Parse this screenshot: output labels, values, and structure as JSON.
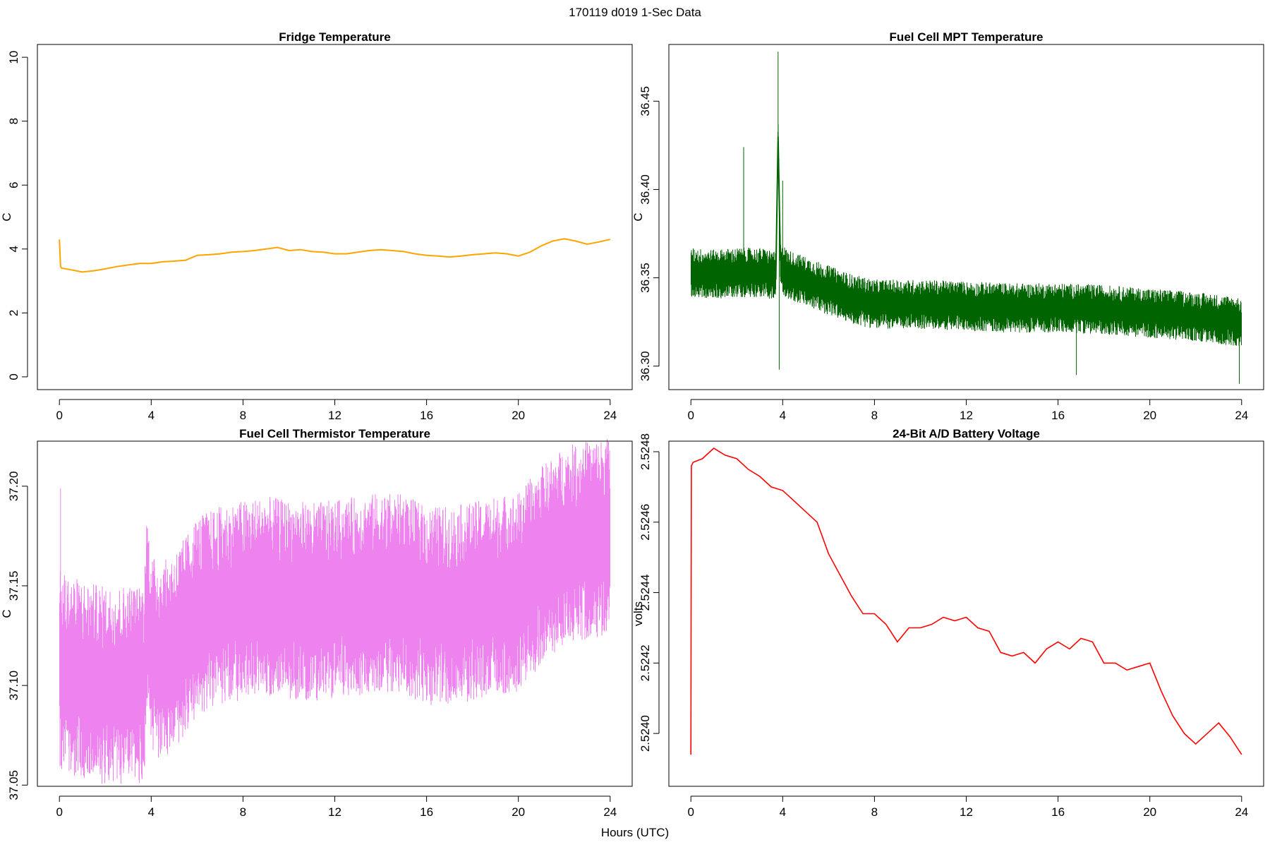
{
  "figure": {
    "suptitle": "170119   d019   1-Sec Data",
    "xlabel": "Hours (UTC)"
  },
  "chart_data": [
    {
      "type": "line",
      "title": "Fridge Temperature",
      "ylabel": "C",
      "xlabel": "",
      "color": "#FFA500",
      "xlim": [
        -0.96,
        24.96
      ],
      "ylim": [
        -0.4,
        10.4
      ],
      "xticks": [
        "0",
        "4",
        "8",
        "12",
        "16",
        "20",
        "24"
      ],
      "yticks": [
        "0",
        "2",
        "4",
        "6",
        "8",
        "10"
      ],
      "noise": 0.02,
      "x": [
        0,
        0.05,
        0.1,
        0.5,
        1,
        1.5,
        2,
        2.5,
        3,
        3.5,
        4,
        4.5,
        5,
        5.5,
        6,
        6.5,
        7,
        7.5,
        8,
        8.5,
        9,
        9.5,
        10,
        10.5,
        11,
        11.5,
        12,
        12.5,
        13,
        13.5,
        14,
        14.5,
        15,
        15.5,
        16,
        16.5,
        17,
        17.5,
        18,
        18.5,
        19,
        19.5,
        20,
        20.5,
        21,
        21.5,
        22,
        22.5,
        23,
        23.5,
        24
      ],
      "values": [
        4.3,
        3.45,
        3.4,
        3.35,
        3.28,
        3.32,
        3.38,
        3.45,
        3.5,
        3.55,
        3.55,
        3.6,
        3.62,
        3.65,
        3.8,
        3.82,
        3.85,
        3.9,
        3.92,
        3.95,
        4.0,
        4.05,
        3.95,
        3.98,
        3.92,
        3.9,
        3.85,
        3.85,
        3.9,
        3.95,
        3.98,
        3.95,
        3.92,
        3.85,
        3.8,
        3.78,
        3.75,
        3.78,
        3.82,
        3.85,
        3.88,
        3.85,
        3.78,
        3.9,
        4.1,
        4.25,
        4.32,
        4.25,
        4.15,
        4.22,
        4.3
      ]
    },
    {
      "type": "line",
      "title": "Fuel Cell MPT Temperature",
      "ylabel": "C",
      "xlabel": "",
      "color": "#006400",
      "xlim": [
        -0.96,
        24.96
      ],
      "ylim": [
        36.2867,
        36.4821
      ],
      "xticks": [
        "0",
        "4",
        "8",
        "12",
        "16",
        "20",
        "24"
      ],
      "yticks": [
        "36.30",
        "36.35",
        "36.40",
        "36.45"
      ],
      "noise": 0.014,
      "x": [
        0,
        1,
        2,
        3,
        3.5,
        3.7,
        3.8,
        3.9,
        4.0,
        4.2,
        5,
        6,
        7,
        8,
        10,
        12,
        14,
        16,
        18,
        20,
        22,
        24
      ],
      "values": [
        36.353,
        36.352,
        36.353,
        36.353,
        36.352,
        36.35,
        36.43,
        36.36,
        36.355,
        36.352,
        36.348,
        36.343,
        36.338,
        36.335,
        36.335,
        36.334,
        36.333,
        36.333,
        36.332,
        36.33,
        36.328,
        36.325
      ],
      "spikes": [
        [
          3.8,
          36.478
        ],
        [
          3.85,
          36.298
        ],
        [
          2.3,
          36.424
        ],
        [
          4.0,
          36.405
        ],
        [
          16.8,
          36.295
        ],
        [
          23.9,
          36.29
        ]
      ]
    },
    {
      "type": "line",
      "title": "Fuel Cell Thermistor Temperature",
      "ylabel": "C",
      "xlabel": "",
      "color": "#EE82EE",
      "xlim": [
        -0.96,
        24.96
      ],
      "ylim": [
        37.0494,
        37.2226
      ],
      "xticks": [
        "0",
        "4",
        "8",
        "12",
        "16",
        "20",
        "24"
      ],
      "yticks": [
        "37.05",
        "37.10",
        "37.15",
        "37.20"
      ],
      "noise": 0.05,
      "x": [
        0,
        0.5,
        1,
        1.5,
        2,
        2.5,
        3,
        3.5,
        3.7,
        3.8,
        4.0,
        4.5,
        5,
        5.5,
        6,
        7,
        8,
        9,
        10,
        11,
        12,
        13,
        14,
        15,
        16,
        17,
        18,
        19,
        20,
        21,
        22,
        23,
        24
      ],
      "values": [
        37.108,
        37.105,
        37.103,
        37.101,
        37.1,
        37.1,
        37.101,
        37.1,
        37.102,
        37.14,
        37.115,
        37.112,
        37.117,
        37.125,
        37.135,
        37.14,
        37.143,
        37.145,
        37.143,
        37.142,
        37.143,
        37.145,
        37.147,
        37.146,
        37.14,
        37.14,
        37.142,
        37.145,
        37.147,
        37.16,
        37.17,
        37.173,
        37.175
      ],
      "spikes": [
        [
          0.05,
          37.199
        ],
        [
          3.8,
          37.18
        ],
        [
          2.0,
          37.056
        ],
        [
          22.5,
          37.219
        ],
        [
          23.8,
          37.218
        ]
      ]
    },
    {
      "type": "line",
      "title": "24-Bit A/D Battery Voltage",
      "ylabel": "volts",
      "xlabel": "",
      "color": "#FF0000",
      "xlim": [
        -0.96,
        24.96
      ],
      "ylim": [
        2.52385,
        2.52483
      ],
      "xticks": [
        "0",
        "4",
        "8",
        "12",
        "16",
        "20",
        "24"
      ],
      "yticks": [
        "2.5240",
        "2.5242",
        "2.5244",
        "2.5246",
        "2.5248"
      ],
      "noise": 0,
      "x": [
        0,
        0.02,
        0.1,
        0.5,
        1.0,
        1.5,
        2.0,
        2.5,
        3.0,
        3.5,
        4.0,
        4.5,
        5.0,
        5.5,
        6.0,
        6.5,
        7.0,
        7.5,
        8.0,
        8.5,
        9.0,
        9.5,
        10.0,
        10.5,
        11.0,
        11.5,
        12.0,
        12.5,
        13.0,
        13.5,
        14.0,
        14.5,
        15.0,
        15.5,
        16.0,
        16.5,
        17.0,
        17.5,
        18.0,
        18.5,
        19.0,
        19.5,
        20.0,
        20.5,
        21.0,
        21.5,
        22.0,
        22.5,
        23.0,
        23.5,
        24.0
      ],
      "values": [
        2.52394,
        2.52476,
        2.52477,
        2.52478,
        2.52481,
        2.52479,
        2.52478,
        2.52475,
        2.52473,
        2.5247,
        2.52469,
        2.52466,
        2.52463,
        2.5246,
        2.52451,
        2.52445,
        2.52439,
        2.52434,
        2.52434,
        2.52431,
        2.52426,
        2.5243,
        2.5243,
        2.52431,
        2.52433,
        2.52432,
        2.52433,
        2.5243,
        2.52429,
        2.52423,
        2.52422,
        2.52423,
        2.5242,
        2.52424,
        2.52426,
        2.52424,
        2.52427,
        2.52426,
        2.5242,
        2.5242,
        2.52418,
        2.52419,
        2.5242,
        2.52412,
        2.52405,
        2.524,
        2.52397,
        2.524,
        2.52403,
        2.52399,
        2.52394
      ]
    }
  ]
}
